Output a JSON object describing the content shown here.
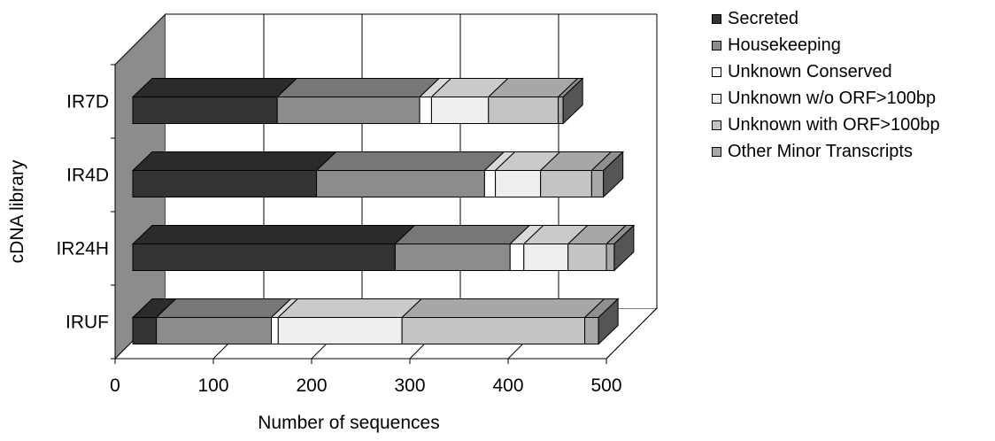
{
  "chart_data": {
    "type": "bar",
    "orientation": "horizontal",
    "stacked": true,
    "style": "3d",
    "ylabel": "cDNA library",
    "xlabel": "Number of sequences",
    "categories": [
      "IRUF",
      "IR24H",
      "IR4D",
      "IR7D"
    ],
    "xlim": [
      0,
      500
    ],
    "xticks": [
      "0",
      "100",
      "200",
      "300",
      "400",
      "500"
    ],
    "grid": true,
    "legend_position": "right",
    "series": [
      {
        "name": "Secreted",
        "color": "#333333",
        "values": [
          24,
          267,
          187,
          147
        ]
      },
      {
        "name": "Housekeeping",
        "color": "#8c8c8c",
        "values": [
          117,
          117,
          171,
          145
        ]
      },
      {
        "name": "Unknown Conserved",
        "color": "#ffffff",
        "values": [
          7,
          14,
          11,
          12
        ]
      },
      {
        "name": "Unknown w/o ORF>100bp",
        "color": "#eeeeee",
        "values": [
          126,
          45,
          46,
          58
        ]
      },
      {
        "name": "Unknown with ORF>100bp",
        "color": "#c4c4c4",
        "values": [
          186,
          39,
          52,
          71
        ]
      },
      {
        "name": "Other Minor Transcripts",
        "color": "#a8a8a8",
        "values": [
          14,
          8,
          12,
          5
        ]
      }
    ]
  }
}
